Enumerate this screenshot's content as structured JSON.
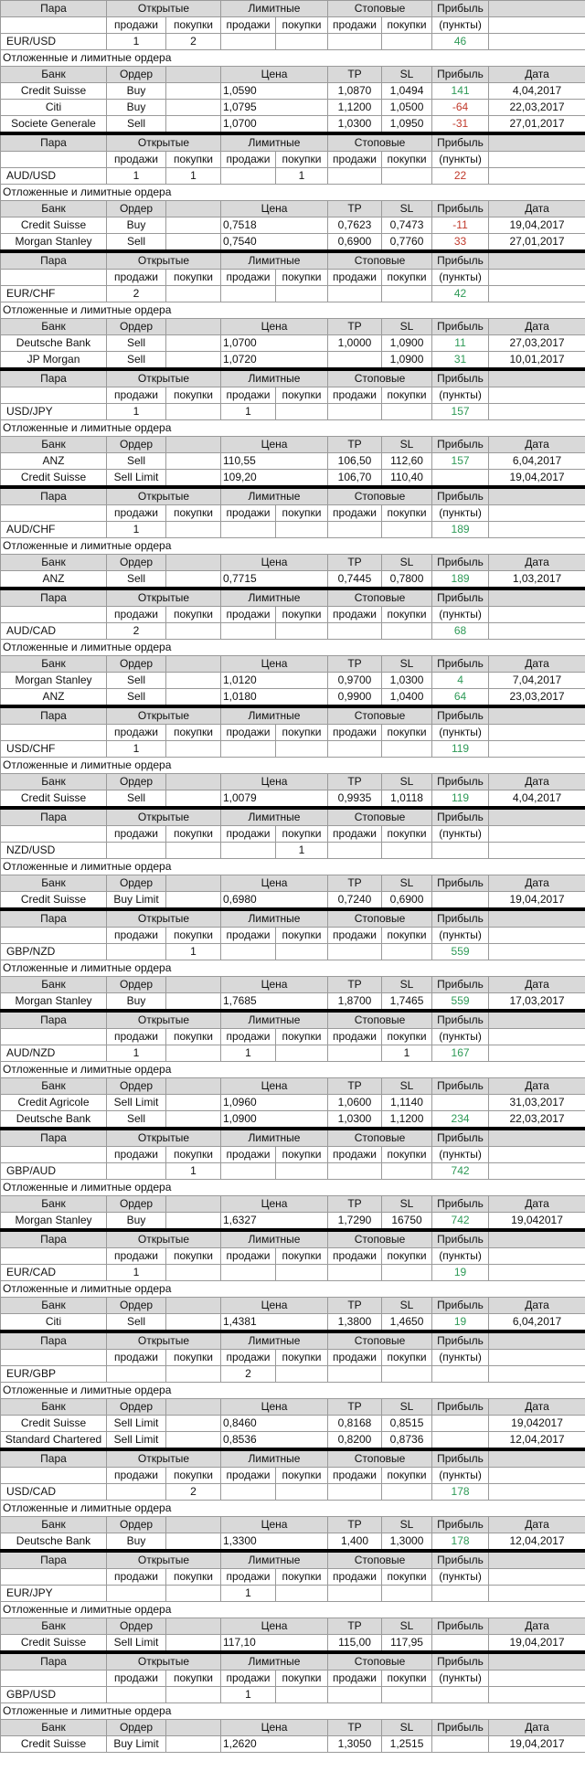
{
  "header": {
    "pair": "Пара",
    "open": "Открытые",
    "limit": "Лимитные",
    "stop": "Стоповые",
    "profit": "Прибыль",
    "sell": "продажи",
    "buy": "покупки",
    "points": "(пункты)",
    "pending": "Отложенные и лимитные ордера",
    "bank": "Банк",
    "order": "Ордер",
    "price": "Цена",
    "tp": "TP",
    "sl": "SL",
    "date": "Дата"
  },
  "blocks": [
    {
      "pair": "EUR/USD",
      "positions": [
        1,
        2,
        null,
        null,
        null,
        null
      ],
      "profit": 46,
      "color": "#2e9a57",
      "orders": [
        {
          "bank": "Credit Suisse",
          "order": "Buy",
          "price": "1,0590",
          "tp": "1,0870",
          "sl": "1,0494",
          "profit": 141,
          "color": "#2e9a57",
          "date": "4,04,2017"
        },
        {
          "bank": "Citi",
          "order": "Buy",
          "price": "1,0795",
          "tp": "1,1200",
          "sl": "1,0500",
          "profit": -64,
          "color": "#c0392b",
          "date": "22,03,2017"
        },
        {
          "bank": "Societe Generale",
          "order": "Sell",
          "price": "1,0700",
          "tp": "1,0300",
          "sl": "1,0950",
          "profit": -31,
          "color": "#c0392b",
          "date": "27,01,2017"
        }
      ]
    },
    {
      "pair": "AUD/USD",
      "positions": [
        1,
        1,
        null,
        1,
        null,
        null
      ],
      "profit": 22,
      "color": "#c0392b",
      "orders": [
        {
          "bank": "Credit Suisse",
          "order": "Buy",
          "price": "0,7518",
          "tp": "0,7623",
          "sl": "0,7473",
          "profit": -11,
          "color": "#c0392b",
          "date": "19,04,2017"
        },
        {
          "bank": "Morgan Stanley",
          "order": "Sell",
          "price": "0,7540",
          "tp": "0,6900",
          "sl": "0,7760",
          "profit": 33,
          "color": "#c0392b",
          "date": "27,01,2017"
        }
      ]
    },
    {
      "pair": "EUR/CHF",
      "positions": [
        2,
        null,
        null,
        null,
        null,
        null
      ],
      "profit": 42,
      "color": "#2e9a57",
      "orders": [
        {
          "bank": "Deutsche Bank",
          "order": "Sell",
          "price": "1,0700",
          "tp": "1,0000",
          "sl": "1,0900",
          "profit": 11,
          "color": "#2e9a57",
          "date": "27,03,2017"
        },
        {
          "bank": "JP Morgan",
          "order": "Sell",
          "price": "1,0720",
          "tp": null,
          "sl": "1,0900",
          "profit": 31,
          "color": "#2e9a57",
          "date": "10,01,2017"
        }
      ]
    },
    {
      "pair": "USD/JPY",
      "positions": [
        1,
        null,
        1,
        null,
        null,
        null
      ],
      "profit": 157,
      "color": "#2e9a57",
      "orders": [
        {
          "bank": "ANZ",
          "order": "Sell",
          "price": "110,55",
          "tp": "106,50",
          "sl": "112,60",
          "profit": 157,
          "color": "#2e9a57",
          "date": "6,04,2017"
        },
        {
          "bank": "Credit Suisse",
          "order": "Sell Limit",
          "price": "109,20",
          "tp": "106,70",
          "sl": "110,40",
          "profit": null,
          "date": "19,04,2017"
        }
      ]
    },
    {
      "pair": "AUD/CHF",
      "positions": [
        1,
        null,
        null,
        null,
        null,
        null
      ],
      "profit": 189,
      "color": "#2e9a57",
      "orders": [
        {
          "bank": "ANZ",
          "order": "Sell",
          "price": "0,7715",
          "tp": "0,7445",
          "sl": "0,7800",
          "profit": 189,
          "color": "#2e9a57",
          "date": "1,03,2017"
        }
      ]
    },
    {
      "pair": "AUD/CAD",
      "positions": [
        2,
        null,
        null,
        null,
        null,
        null
      ],
      "profit": 68,
      "color": "#2e9a57",
      "orders": [
        {
          "bank": "Morgan Stanley",
          "order": "Sell",
          "price": "1,0120",
          "tp": "0,9700",
          "sl": "1,0300",
          "profit": 4,
          "color": "#2e9a57",
          "date": "7,04,2017"
        },
        {
          "bank": "ANZ",
          "order": "Sell",
          "price": "1,0180",
          "tp": "0,9900",
          "sl": "1,0400",
          "profit": 64,
          "color": "#2e9a57",
          "date": "23,03,2017"
        }
      ]
    },
    {
      "pair": "USD/CHF",
      "positions": [
        1,
        null,
        null,
        null,
        null,
        null
      ],
      "profit": 119,
      "color": "#2e9a57",
      "orders": [
        {
          "bank": "Credit Suisse",
          "order": "Sell",
          "price": "1,0079",
          "tp": "0,9935",
          "sl": "1,0118",
          "profit": 119,
          "color": "#2e9a57",
          "date": "4,04,2017"
        }
      ]
    },
    {
      "pair": "NZD/USD",
      "positions": [
        null,
        null,
        null,
        1,
        null,
        null
      ],
      "profit": null,
      "orders": [
        {
          "bank": "Credit Suisse",
          "order": "Buy Limit",
          "price": "0,6980",
          "tp": "0,7240",
          "sl": "0,6900",
          "profit": null,
          "date": "19,04,2017"
        }
      ]
    },
    {
      "pair": "GBP/NZD",
      "positions": [
        null,
        1,
        null,
        null,
        null,
        null
      ],
      "profit": 559,
      "color": "#2e9a57",
      "orders": [
        {
          "bank": "Morgan Stanley",
          "order": "Buy",
          "price": "1,7685",
          "tp": "1,8700",
          "sl": "1,7465",
          "profit": 559,
          "color": "#2e9a57",
          "date": "17,03,2017"
        }
      ]
    },
    {
      "pair": "AUD/NZD",
      "positions": [
        1,
        null,
        1,
        null,
        null,
        1
      ],
      "profit": 167,
      "color": "#2e9a57",
      "orders": [
        {
          "bank": "Credit Agricole",
          "order": "Sell Limit",
          "price": "1,0960",
          "tp": "1,0600",
          "sl": "1,1140",
          "profit": null,
          "date": "31,03,2017"
        },
        {
          "bank": "Deutsche Bank",
          "order": "Sell",
          "price": "1,0900",
          "tp": "1,0300",
          "sl": "1,1200",
          "profit": 234,
          "color": "#2e9a57",
          "date": "22,03,2017"
        }
      ]
    },
    {
      "pair": "GBP/AUD",
      "positions": [
        null,
        1,
        null,
        null,
        null,
        null
      ],
      "profit": 742,
      "color": "#2e9a57",
      "orders": [
        {
          "bank": "Morgan Stanley",
          "order": "Buy",
          "price": "1,6327",
          "tp": "1,7290",
          "sl": "16750",
          "profit": 742,
          "color": "#2e9a57",
          "date": "19,042017"
        }
      ]
    },
    {
      "pair": "EUR/CAD",
      "positions": [
        1,
        null,
        null,
        null,
        null,
        null
      ],
      "profit": 19,
      "color": "#2e9a57",
      "orders": [
        {
          "bank": "Citi",
          "order": "Sell",
          "price": "1,4381",
          "tp": "1,3800",
          "sl": "1,4650",
          "profit": 19,
          "color": "#2e9a57",
          "date": "6,04,2017"
        }
      ]
    },
    {
      "pair": "EUR/GBP",
      "positions": [
        null,
        null,
        2,
        null,
        null,
        null
      ],
      "profit": null,
      "orders": [
        {
          "bank": "Credit Suisse",
          "order": "Sell Limit",
          "price": "0,8460",
          "tp": "0,8168",
          "sl": "0,8515",
          "profit": null,
          "date": "19,042017"
        },
        {
          "bank": "Standard Chartered",
          "order": "Sell Limit",
          "price": "0,8536",
          "tp": "0,8200",
          "sl": "0,8736",
          "profit": null,
          "date": "12,04,2017"
        }
      ]
    },
    {
      "pair": "USD/CAD",
      "positions": [
        null,
        2,
        null,
        null,
        null,
        null
      ],
      "profit": 178,
      "color": "#2e9a57",
      "orders": [
        {
          "bank": "Deutsche Bank",
          "order": "Buy",
          "price": "1,3300",
          "tp": "1,400",
          "sl": "1,3000",
          "profit": 178,
          "color": "#2e9a57",
          "date": "12,04,2017"
        }
      ]
    },
    {
      "pair": "EUR/JPY",
      "positions": [
        null,
        null,
        1,
        null,
        null,
        null
      ],
      "profit": null,
      "orders": [
        {
          "bank": "Credit Suisse",
          "order": "Sell Limit",
          "price": "117,10",
          "tp": "115,00",
          "sl": "117,95",
          "profit": null,
          "date": "19,04,2017"
        }
      ]
    },
    {
      "pair": "GBP/USD",
      "positions": [
        null,
        null,
        1,
        null,
        null,
        null
      ],
      "profit": null,
      "orders": [
        {
          "bank": "Credit Suisse",
          "order": "Buy Limit",
          "price": "1,2620",
          "tp": "1,3050",
          "sl": "1,2515",
          "profit": null,
          "date": "19,04,2017"
        }
      ]
    }
  ]
}
